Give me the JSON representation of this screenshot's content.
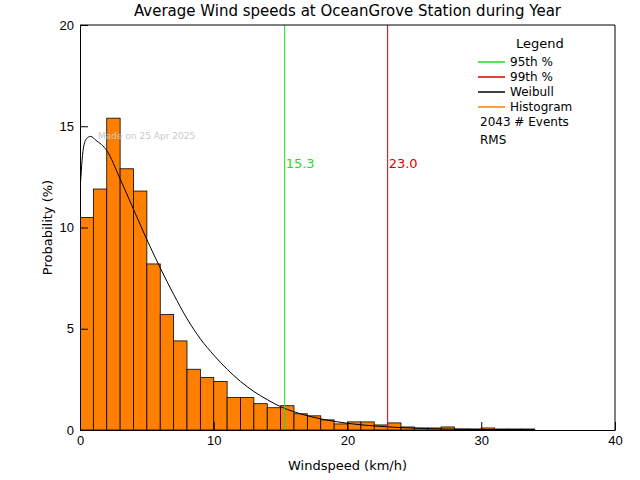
{
  "chart_data": {
    "type": "histogram",
    "title": "Average Wind speeds at OceanGrove Station during Year",
    "x_label": "Windspeed (km/h)",
    "y_label": "Probability (%)",
    "xlim": [
      0,
      40
    ],
    "ylim": [
      0,
      20
    ],
    "xticks": [
      0,
      10,
      20,
      30,
      40
    ],
    "yticks": [
      0,
      5,
      10,
      15,
      20
    ],
    "legend": "upper right",
    "legend_title": "Legend",
    "legend_notes": [
      "2043 # Events",
      "RMS"
    ],
    "watermark": "Made on 25 Apr 2025",
    "bins": [
      0,
      1,
      2,
      3,
      4,
      5,
      6,
      7,
      8,
      9,
      10,
      11,
      12,
      13,
      14,
      15,
      16,
      17,
      18,
      19,
      20,
      21,
      22,
      23,
      24,
      25,
      26,
      27,
      28,
      29,
      30,
      31,
      32,
      33,
      34
    ],
    "series": [
      {
        "name": "Histogram",
        "type": "bar",
        "color": "#ff8000",
        "values": [
          10.5,
          11.9,
          15.4,
          12.9,
          11.8,
          8.2,
          5.7,
          4.4,
          3.0,
          2.6,
          2.4,
          1.6,
          1.6,
          1.3,
          1.1,
          1.2,
          0.8,
          0.7,
          0.5,
          0.3,
          0.4,
          0.4,
          0.25,
          0.35,
          0.15,
          0.1,
          0.1,
          0.15,
          0.05,
          0.05,
          0.1,
          0.05,
          0.05,
          0.05
        ]
      },
      {
        "name": "Weibull",
        "type": "line",
        "color": "#000000",
        "x": [
          0,
          0.25,
          0.5,
          0.8,
          1.2,
          1.6,
          2,
          3,
          4,
          5,
          6,
          7,
          8,
          9,
          10,
          11,
          12,
          13,
          14,
          15,
          16,
          18,
          20,
          22,
          25,
          28,
          31,
          34
        ],
        "values": [
          11.8,
          13.9,
          14.4,
          14.5,
          14.3,
          14.1,
          13.8,
          12.4,
          10.9,
          9.4,
          8.0,
          6.7,
          5.5,
          4.5,
          3.7,
          3.0,
          2.4,
          1.9,
          1.5,
          1.15,
          0.9,
          0.55,
          0.33,
          0.2,
          0.09,
          0.04,
          0.02,
          0.01
        ]
      }
    ],
    "annotations": [
      {
        "name": "95th %",
        "value": 15.3,
        "label": "15.3",
        "color": "#22dd22"
      },
      {
        "name": "99th %",
        "value": 23.0,
        "label": "23.0",
        "color": "#dd0000"
      }
    ]
  }
}
